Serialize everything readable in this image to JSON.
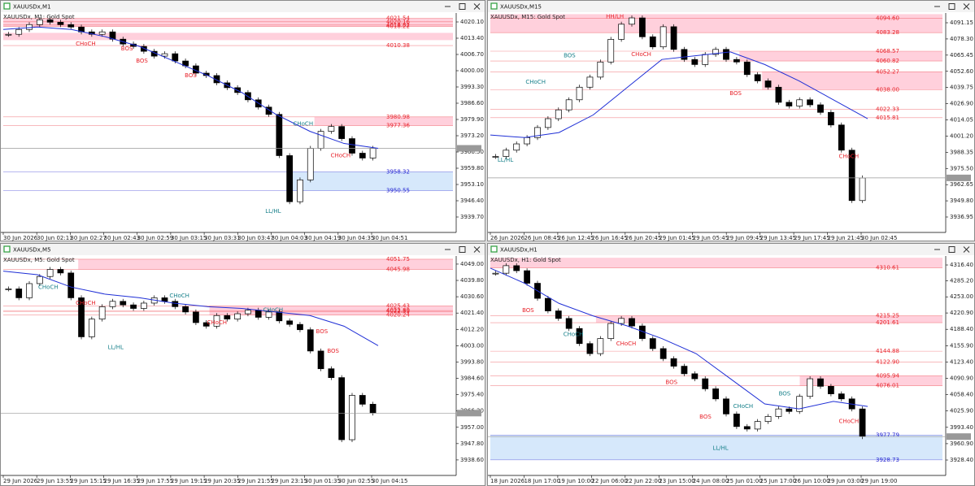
{
  "chart_data": [
    {
      "type": "candlestick",
      "title": "XAUUSDx,M1",
      "subtitle": "XAUUSDx, M1:  Gold Spot",
      "x": [
        "30 Jun 2026",
        "30 Jun 02:11",
        "30 Jun 02:27",
        "30 Jun 02:43",
        "30 Jun 02:59",
        "30 Jun 03:15",
        "30 Jun 03:31",
        "30 Jun 03:47",
        "30 Jun 04:03",
        "30 Jun 04:19",
        "30 Jun 04:35",
        "30 Jun 04:51"
      ],
      "closes": [
        4015,
        4017,
        4019,
        4021,
        4020,
        4019,
        4018,
        4016,
        4015,
        4016,
        4013,
        4011,
        4010,
        4008,
        4006,
        4007,
        4004,
        4002,
        3999,
        3998,
        3995,
        3993,
        3991,
        3988,
        3985,
        3982,
        3965,
        3946,
        3955,
        3968,
        3975,
        3977,
        3972,
        3966,
        3964,
        3968
      ],
      "ma": [
        4017,
        4018,
        4017,
        4014,
        4010,
        4004,
        3998,
        3991,
        3982,
        3975,
        3970,
        3968
      ],
      "ma_color": "#1f2fd6",
      "ylim": [
        3933.0,
        4023.45
      ],
      "yticks": [
        {
          "value": 4020.1,
          "label": "4020.10"
        },
        {
          "value": 4013.4,
          "label": "4013.40"
        },
        {
          "value": 4006.7,
          "label": "4006.70"
        },
        {
          "value": 4000.0,
          "label": "4000.00"
        },
        {
          "value": 3993.3,
          "label": "3993.30"
        },
        {
          "value": 3986.6,
          "label": "3986.60"
        },
        {
          "value": 3979.9,
          "label": "3979.90"
        },
        {
          "value": 3973.2,
          "label": "3973.20"
        },
        {
          "value": 3966.5,
          "label": "3966.50"
        },
        {
          "value": 3959.8,
          "label": "3959.80"
        },
        {
          "value": 3953.1,
          "label": "3953.10"
        },
        {
          "value": 3946.4,
          "label": "3946.40"
        },
        {
          "value": 3939.7,
          "label": "3939.70"
        }
      ],
      "levels": [
        {
          "value": 4021.54,
          "label": "4021.54",
          "color": "#e8222a"
        },
        {
          "value": 4020.16,
          "label": "4020.16",
          "color": "#e8222a"
        },
        {
          "value": 4018.82,
          "label": "4018.82",
          "color": "#e8222a"
        },
        {
          "value": 4018.22,
          "label": "4018.22",
          "color": "#e8222a"
        },
        {
          "value": 4010.38,
          "label": "4010.38",
          "color": "#e8222a"
        },
        {
          "value": 3980.98,
          "label": "3980.98",
          "color": "#e8222a"
        },
        {
          "value": 3977.36,
          "label": "3977.36",
          "color": "#e8222a"
        },
        {
          "value": 3958.32,
          "label": "3958.32",
          "color": "#1f1fd0"
        },
        {
          "value": 3950.55,
          "label": "3950.55",
          "color": "#1f1fd0"
        }
      ],
      "zones": [
        {
          "low": 4018.22,
          "high": 4021.54,
          "color": "#ffd0dc"
        },
        {
          "low": 4012.6,
          "high": 4015.6,
          "color": "#ffd0dc"
        },
        {
          "low": 3977.36,
          "high": 3980.98,
          "color": "#ffd0dc"
        },
        {
          "low": 3950.55,
          "high": 3958.32,
          "color": "#d6e8fb"
        }
      ],
      "annotations": [
        {
          "text": "CHoCH",
          "color": "#e8222a"
        },
        {
          "text": "BOS",
          "color": "#e8222a"
        },
        {
          "text": "BOS",
          "color": "#e8222a"
        },
        {
          "text": "BOS",
          "color": "#e8222a"
        },
        {
          "text": "LL/HL",
          "color": "#17808a"
        },
        {
          "text": "CHoCH",
          "color": "#17808a"
        },
        {
          "text": "CHoCH",
          "color": "#e8222a"
        }
      ]
    },
    {
      "type": "candlestick",
      "title": "XAUUSDx,M15",
      "subtitle": "XAUUSDx, M15:  Gold Spot",
      "x": [
        "26 Jun 2026",
        "26 Jun 08:45",
        "26 Jun 12:45",
        "26 Jun 16:45",
        "26 Jun 20:45",
        "29 Jun 01:45",
        "29 Jun 05:45",
        "29 Jun 09:45",
        "29 Jun 13:45",
        "29 Jun 17:45",
        "29 Jun 21:45",
        "30 Jun 02:45"
      ],
      "closes": [
        3985,
        3990,
        3995,
        4000,
        4008,
        4015,
        4022,
        4030,
        4040,
        4048,
        4060,
        4078,
        4090,
        4095,
        4080,
        4072,
        4088,
        4070,
        4062,
        4058,
        4066,
        4070,
        4062,
        4060,
        4050,
        4045,
        4040,
        4028,
        4025,
        4030,
        4026,
        4020,
        4010,
        3990,
        3950,
        3968
      ],
      "ma": [
        4002,
        4000,
        4004,
        4018,
        4040,
        4062,
        4065,
        4068,
        4058,
        4045,
        4030,
        4015
      ],
      "ma_color": "#1f2fd6",
      "ylim": [
        3924.05,
        4098.25
      ],
      "yticks": [
        {
          "value": 4091.15,
          "label": "4091.15"
        },
        {
          "value": 4078.3,
          "label": "4078.30"
        },
        {
          "value": 4065.45,
          "label": "4065.45"
        },
        {
          "value": 4052.6,
          "label": "4052.60"
        },
        {
          "value": 4039.75,
          "label": "4039.75"
        },
        {
          "value": 4026.9,
          "label": "4026.90"
        },
        {
          "value": 4014.05,
          "label": "4014.05"
        },
        {
          "value": 4001.2,
          "label": "4001.20"
        },
        {
          "value": 3988.35,
          "label": "3988.35"
        },
        {
          "value": 3975.5,
          "label": "3975.50"
        },
        {
          "value": 3962.65,
          "label": "3962.65"
        },
        {
          "value": 3949.8,
          "label": "3949.80"
        },
        {
          "value": 3936.95,
          "label": "3936.95"
        }
      ],
      "levels": [
        {
          "value": 4094.6,
          "label": "4094.60",
          "color": "#e8222a"
        },
        {
          "value": 4083.28,
          "label": "4083.28",
          "color": "#e8222a"
        },
        {
          "value": 4068.57,
          "label": "4068.57",
          "color": "#e8222a"
        },
        {
          "value": 4060.82,
          "label": "4060.82",
          "color": "#e8222a"
        },
        {
          "value": 4052.27,
          "label": "4052.27",
          "color": "#e8222a"
        },
        {
          "value": 4038.0,
          "label": "4038.00",
          "color": "#e8222a"
        },
        {
          "value": 4022.33,
          "label": "4022.33",
          "color": "#e8222a"
        },
        {
          "value": 4015.81,
          "label": "4015.81",
          "color": "#e8222a"
        }
      ],
      "zones": [
        {
          "low": 4083.28,
          "high": 4098.0,
          "color": "#ffd0dc"
        },
        {
          "low": 4060.82,
          "high": 4068.57,
          "color": "#ffd0dc"
        },
        {
          "low": 4038.0,
          "high": 4052.27,
          "color": "#ffd0dc"
        }
      ],
      "annotations": [
        {
          "text": "LL/HL",
          "color": "#17808a"
        },
        {
          "text": "CHoCH",
          "color": "#17808a"
        },
        {
          "text": "BOS",
          "color": "#17808a"
        },
        {
          "text": "HH/LH",
          "color": "#e8222a"
        },
        {
          "text": "CHoCH",
          "color": "#e8222a"
        },
        {
          "text": "BOS",
          "color": "#e8222a"
        },
        {
          "text": "CHoCH",
          "color": "#e8222a"
        }
      ]
    },
    {
      "type": "candlestick",
      "title": "XAUUSDx,M5",
      "subtitle": "XAUUSDx, M5:  Gold Spot",
      "x": [
        "29 Jun 2026",
        "29 Jun 13:55",
        "29 Jun 15:15",
        "29 Jun 16:35",
        "29 Jun 17:55",
        "29 Jun 19:15",
        "29 Jun 20:35",
        "29 Jun 21:55",
        "29 Jun 23:15",
        "30 Jun 01:35",
        "30 Jun 02:55",
        "30 Jun 04:15"
      ],
      "closes": [
        4035,
        4030,
        4038,
        4042,
        4046,
        4044,
        4030,
        4008,
        4018,
        4025,
        4028,
        4026,
        4024,
        4027,
        4030,
        4028,
        4025,
        4022,
        4016,
        4014,
        4020,
        4018,
        4021,
        4023,
        4019,
        4022,
        4017,
        4015,
        4012,
        4000,
        3990,
        3985,
        3950,
        3975,
        3970,
        3965
      ],
      "ma": [
        4045,
        4043,
        4036,
        4032,
        4030,
        4027,
        4025,
        4024,
        4022,
        4020,
        4014,
        4003
      ],
      "ma_color": "#1f2fd6",
      "ylim": [
        3929.4,
        4053.1
      ],
      "yticks": [
        {
          "value": 4049.0,
          "label": "4049.00"
        },
        {
          "value": 4039.8,
          "label": "4039.80"
        },
        {
          "value": 4030.6,
          "label": "4030.60"
        },
        {
          "value": 4021.4,
          "label": "4021.40"
        },
        {
          "value": 4012.2,
          "label": "4012.20"
        },
        {
          "value": 4003.0,
          "label": "4003.00"
        },
        {
          "value": 3993.8,
          "label": "3993.80"
        },
        {
          "value": 3984.6,
          "label": "3984.60"
        },
        {
          "value": 3975.4,
          "label": "3975.40"
        },
        {
          "value": 3966.2,
          "label": "3966.20"
        },
        {
          "value": 3957.0,
          "label": "3957.00"
        },
        {
          "value": 3947.8,
          "label": "3947.80"
        },
        {
          "value": 3938.6,
          "label": "3938.60"
        }
      ],
      "levels": [
        {
          "value": 4051.75,
          "label": "4051.75",
          "color": "#e8222a"
        },
        {
          "value": 4045.98,
          "label": "4045.98",
          "color": "#e8222a"
        },
        {
          "value": 4025.43,
          "label": "4025.43",
          "color": "#e8222a"
        },
        {
          "value": 4022.33,
          "label": "4022.33",
          "color": "#e8222a"
        },
        {
          "value": 4022.8,
          "label": "4022.80",
          "color": "#e8222a"
        },
        {
          "value": 4020.24,
          "label": "4020.24",
          "color": "#e8222a"
        }
      ],
      "zones": [
        {
          "low": 4045.98,
          "high": 4051.75,
          "color": "#ffd0dc"
        },
        {
          "low": 4020.24,
          "high": 4025.43,
          "color": "#ffd0dc"
        }
      ],
      "annotations": [
        {
          "text": "CHoCH",
          "color": "#17808a"
        },
        {
          "text": "CHoCH",
          "color": "#e8222a"
        },
        {
          "text": "LL/HL",
          "color": "#17808a"
        },
        {
          "text": "CHoCH",
          "color": "#17808a"
        },
        {
          "text": "CHoCH",
          "color": "#e8222a"
        },
        {
          "text": "CHoCH",
          "color": "#17808a"
        },
        {
          "text": "BOS",
          "color": "#e8222a"
        },
        {
          "text": "BOS",
          "color": "#e8222a"
        }
      ]
    },
    {
      "type": "candlestick",
      "title": "XAUUSDx,H1",
      "subtitle": "XAUUSDx, H1:  Gold Spot",
      "x": [
        "18 Jun 2026",
        "18 Jun 17:00",
        "19 Jun 10:00",
        "22 Jun 06:00",
        "22 Jun 22:00",
        "23 Jun 15:00",
        "24 Jun 08:00",
        "25 Jun 01:00",
        "25 Jun 17:00",
        "26 Jun 10:00",
        "29 Jun 03:00",
        "29 Jun 19:00"
      ],
      "closes": [
        4300,
        4315,
        4305,
        4280,
        4250,
        4225,
        4210,
        4190,
        4160,
        4140,
        4170,
        4200,
        4210,
        4195,
        4170,
        4150,
        4130,
        4115,
        4100,
        4090,
        4070,
        4050,
        4020,
        3995,
        3990,
        4005,
        4015,
        4030,
        4025,
        4055,
        4090,
        4075,
        4060,
        4050,
        4030,
        3975
      ],
      "ma": [
        4310,
        4280,
        4240,
        4215,
        4195,
        4170,
        4140,
        4090,
        4040,
        4030,
        4045,
        4035
      ],
      "ma_color": "#1f2fd6",
      "ylim": [
        3896.1,
        4332.6
      ],
      "yticks": [
        {
          "value": 4316.4,
          "label": "4316.40"
        },
        {
          "value": 4285.2,
          "label": "4285.20"
        },
        {
          "value": 4253.0,
          "label": "4253.00"
        },
        {
          "value": 4220.9,
          "label": "4220.90"
        },
        {
          "value": 4188.4,
          "label": "4188.40"
        },
        {
          "value": 4155.9,
          "label": "4155.90"
        },
        {
          "value": 4123.4,
          "label": "4123.40"
        },
        {
          "value": 4090.9,
          "label": "4090.90"
        },
        {
          "value": 4058.4,
          "label": "4058.40"
        },
        {
          "value": 4025.9,
          "label": "4025.90"
        },
        {
          "value": 3993.4,
          "label": "3993.40"
        },
        {
          "value": 3960.9,
          "label": "3960.90"
        },
        {
          "value": 3928.4,
          "label": "3928.40"
        }
      ],
      "levels": [
        {
          "value": 4310.61,
          "label": "4310.61",
          "color": "#e8222a"
        },
        {
          "value": 4215.25,
          "label": "4215.25",
          "color": "#e8222a"
        },
        {
          "value": 4201.61,
          "label": "4201.61",
          "color": "#e8222a"
        },
        {
          "value": 4144.88,
          "label": "4144.88",
          "color": "#e8222a"
        },
        {
          "value": 4122.9,
          "label": "4122.90",
          "color": "#e8222a"
        },
        {
          "value": 4095.94,
          "label": "4095.94",
          "color": "#e8222a"
        },
        {
          "value": 4076.01,
          "label": "4076.01",
          "color": "#e8222a"
        },
        {
          "value": 3977.79,
          "label": "3977.79",
          "color": "#1f1fd0"
        },
        {
          "value": 3928.73,
          "label": "3928.73",
          "color": "#1f1fd0"
        }
      ],
      "zones": [
        {
          "low": 4310.61,
          "high": 4330.74,
          "color": "#ffd0dc"
        },
        {
          "low": 4201.61,
          "high": 4215.25,
          "color": "#ffd0dc"
        },
        {
          "low": 4076.01,
          "high": 4095.94,
          "color": "#ffd0dc"
        },
        {
          "low": 3928.73,
          "high": 3977.79,
          "color": "#d6e8fb"
        }
      ],
      "annotations": [
        {
          "text": "BOS",
          "color": "#e8222a"
        },
        {
          "text": "CHoCH",
          "color": "#17808a"
        },
        {
          "text": "CHoCH",
          "color": "#e8222a"
        },
        {
          "text": "BOS",
          "color": "#e8222a"
        },
        {
          "text": "BOS",
          "color": "#e8222a"
        },
        {
          "text": "CHoCH",
          "color": "#17808a"
        },
        {
          "text": "BOS",
          "color": "#17808a"
        },
        {
          "text": "LL/HL",
          "color": "#17808a"
        },
        {
          "text": "CHoCH",
          "color": "#e8222a"
        }
      ]
    }
  ]
}
